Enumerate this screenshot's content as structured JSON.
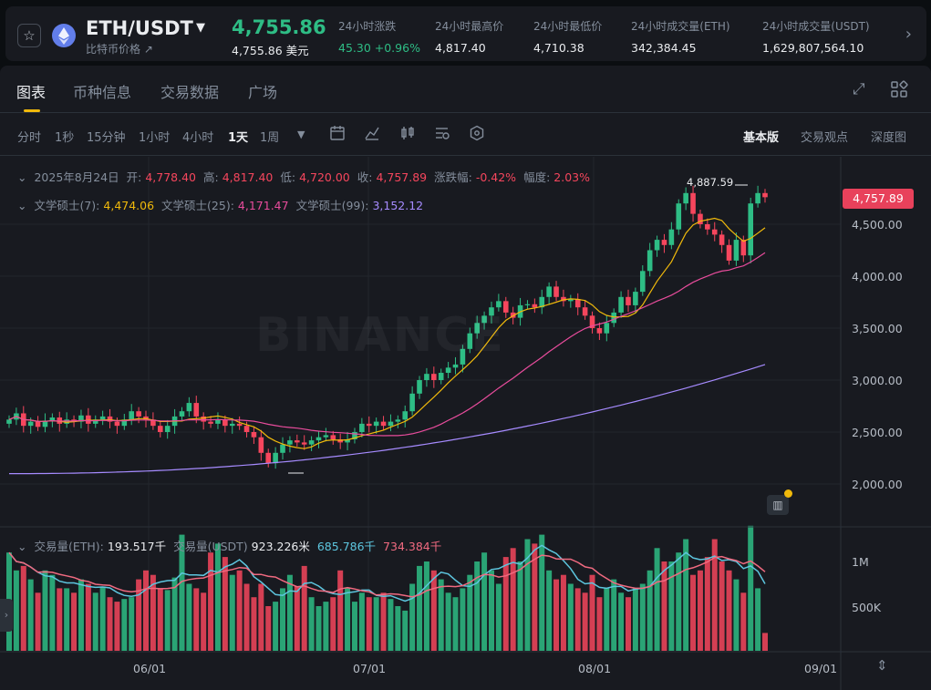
{
  "ticker": {
    "pair": "ETH/USDT",
    "subname": "比特币价格 ↗",
    "price": "4,755.86",
    "price_fiat": "4,755.86 美元",
    "stats": [
      {
        "label": "24小时涨跌",
        "value": "45.30 +0.96%",
        "up": true
      },
      {
        "label": "24小时最高价",
        "value": "4,817.40"
      },
      {
        "label": "24小时最低价",
        "value": "4,710.38"
      },
      {
        "label": "24小时成交量(ETH)",
        "value": "342,384.45"
      },
      {
        "label": "24小时成交量(USDT)",
        "value": "1,629,807,564.10"
      }
    ],
    "star_icon": "star-icon",
    "coin_icon": "ethereum-icon",
    "accent_up": "#2ebd85",
    "accent_down": "#f6465d"
  },
  "tabs": [
    "图表",
    "币种信息",
    "交易数据",
    "广场"
  ],
  "intervals": [
    "分时",
    "1秒",
    "15分钟",
    "1小时",
    "4小时",
    "1天",
    "1周"
  ],
  "active_interval": "1天",
  "views": [
    "基本版",
    "交易观点",
    "深度图"
  ],
  "ohlc": {
    "date": "2025年8月24日",
    "open_label": "开:",
    "open": "4,778.40",
    "high_label": "高:",
    "high": "4,817.40",
    "low_label": "低:",
    "low": "4,720.00",
    "close_label": "收:",
    "close": "4,757.89",
    "change_label": "涨跌幅:",
    "change": "-0.42%",
    "amp_label": "幅度:",
    "amp": "2.03%"
  },
  "ma": {
    "ma7_label": "文学硕士(7):",
    "ma7": "4,474.06",
    "ma25_label": "文学硕士(25):",
    "ma25": "4,171.47",
    "ma99_label": "文学硕士(99):",
    "ma99": "3,152.12"
  },
  "volume": {
    "vol_label": "交易量(ETH):",
    "vol": "193.517千",
    "volu_label": "交易量(USDT)",
    "volu": "923.226米",
    "ma5": "685.786千",
    "ma10": "734.384千"
  },
  "chart_data": {
    "type": "candlestick",
    "price_axis": [
      "4,500.00",
      "4,000.00",
      "3,500.00",
      "3,000.00",
      "2,500.00",
      "2,000.00"
    ],
    "price_axis_values": [
      4500,
      4000,
      3500,
      3000,
      2500,
      2000
    ],
    "volume_axis": [
      "1M",
      "500K"
    ],
    "x_axis": [
      "06/01",
      "07/01",
      "08/01",
      "09/01"
    ],
    "last_price": "4,757.89",
    "high_marker": "4,887.59",
    "watermark": "BINANCE",
    "grid": true,
    "candles_close": [
      2620,
      2680,
      2560,
      2600,
      2550,
      2610,
      2640,
      2580,
      2620,
      2600,
      2660,
      2580,
      2620,
      2650,
      2600,
      2560,
      2620,
      2700,
      2650,
      2620,
      2560,
      2500,
      2560,
      2650,
      2700,
      2780,
      2650,
      2600,
      2580,
      2620,
      2560,
      2580,
      2560,
      2500,
      2450,
      2300,
      2200,
      2300,
      2380,
      2420,
      2400,
      2380,
      2420,
      2450,
      2470,
      2430,
      2400,
      2430,
      2500,
      2580,
      2560,
      2600,
      2560,
      2600,
      2620,
      2700,
      2870,
      3000,
      3060,
      3000,
      3070,
      3120,
      3150,
      3300,
      3450,
      3550,
      3620,
      3700,
      3760,
      3650,
      3600,
      3720,
      3730,
      3700,
      3800,
      3900,
      3800,
      3760,
      3780,
      3700,
      3620,
      3500,
      3450,
      3550,
      3650,
      3800,
      3720,
      3850,
      4050,
      4250,
      4350,
      4300,
      4450,
      4700,
      4800,
      4600,
      4500,
      4450,
      4400,
      4300,
      4150,
      4350,
      4200,
      4700,
      4800,
      4760
    ],
    "volume_values_k": [
      1100,
      900,
      950,
      800,
      650,
      900,
      850,
      700,
      700,
      650,
      800,
      750,
      650,
      720,
      600,
      550,
      580,
      600,
      800,
      900,
      850,
      700,
      680,
      820,
      1300,
      750,
      700,
      650,
      1100,
      1200,
      1050,
      850,
      900,
      750,
      600,
      750,
      500,
      550,
      700,
      850,
      720,
      950,
      600,
      500,
      550,
      600,
      900,
      700,
      550,
      650,
      600,
      600,
      650,
      580,
      500,
      450,
      750,
      950,
      1000,
      900,
      800,
      650,
      600,
      700,
      850,
      1000,
      1100,
      900,
      750,
      1050,
      1150,
      1000,
      1250,
      1200,
      1300,
      900,
      800,
      850,
      750,
      700,
      650,
      850,
      600,
      700,
      800,
      650,
      600,
      700,
      750,
      900,
      1150,
      1000,
      1000,
      1100,
      1250,
      850,
      900,
      1050,
      1250,
      1000,
      900,
      800,
      650,
      1400,
      700,
      200
    ],
    "ma7_color": "#f0b90b",
    "ma25_color": "#e84c9c",
    "ma99_color": "#a68bff",
    "vol_ma5_color": "#5dc6df",
    "vol_ma10_color": "#f06a80"
  }
}
